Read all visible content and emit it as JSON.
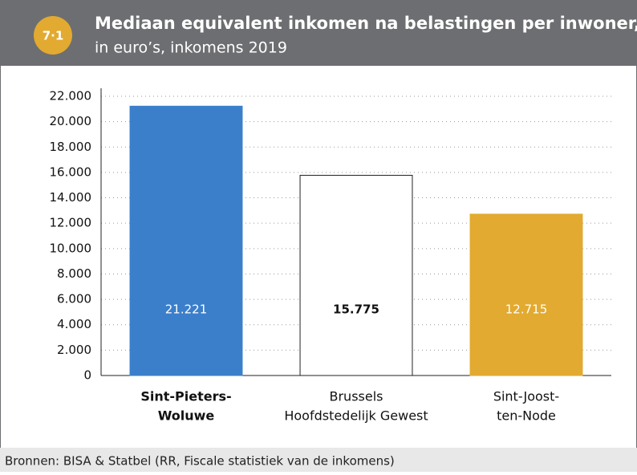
{
  "chart_data": {
    "type": "bar",
    "badge": "7·1",
    "title": "Mediaan equivalent inkomen na belastingen per inwoner,",
    "subtitle": "in euro’s, inkomens 2019",
    "source": "Bronnen: BISA & Statbel (RR, Fiscale statistiek van de inkomens)",
    "categories": [
      [
        "Sint-Pieters-",
        "Woluwe"
      ],
      [
        "Brussels",
        "Hoofdstedelijk Gewest"
      ],
      [
        "Sint-Joost-",
        "ten-Node"
      ]
    ],
    "values": [
      21221,
      15775,
      12715
    ],
    "value_labels": [
      "21.221",
      "15.775",
      "12.715"
    ],
    "colors": [
      "#3b7fcb",
      "#ffffff",
      "#e2aa30"
    ],
    "ylim": [
      0,
      22000
    ],
    "yticks": [
      0,
      {
        "value": 2000,
        "label": "2.000"
      },
      {
        "value": 4000,
        "label": "4.000"
      },
      {
        "value": 6000,
        "label": "6.000"
      },
      {
        "value": 8000,
        "label": "8.000"
      },
      {
        "value": 10000,
        "label": "10.000"
      },
      {
        "value": 12000,
        "label": "12.000"
      },
      {
        "value": 14000,
        "label": "14.000"
      },
      {
        "value": 16000,
        "label": "16.000"
      },
      {
        "value": 18000,
        "label": "18.000"
      },
      {
        "value": 20000,
        "label": "20.000"
      },
      {
        "value": 22000,
        "label": "22.000"
      }
    ],
    "grid": true
  }
}
